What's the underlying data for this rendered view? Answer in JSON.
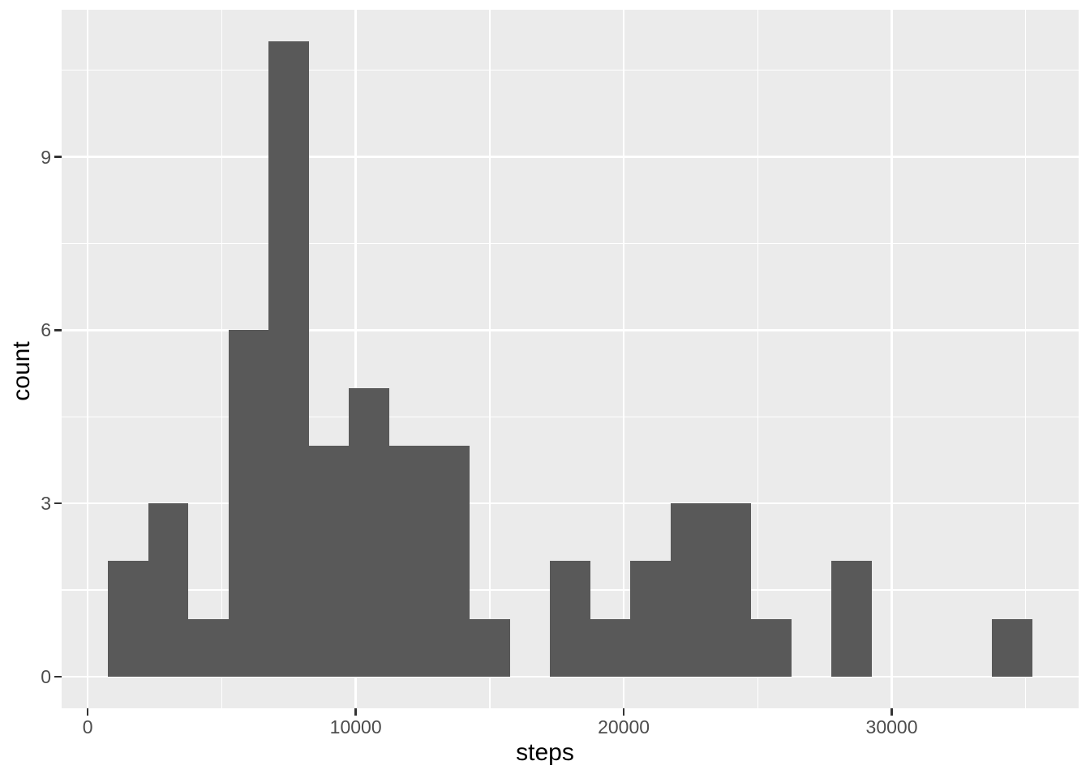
{
  "chart_data": {
    "type": "bar",
    "subtype": "histogram",
    "title": "",
    "xlabel": "steps",
    "ylabel": "count",
    "binwidth": 1500,
    "bins": {
      "centers": [
        1500,
        3000,
        4500,
        6000,
        7500,
        9000,
        10500,
        12000,
        13500,
        15000,
        16500,
        18000,
        19500,
        21000,
        22500,
        24000,
        25500,
        27000,
        28500,
        30000,
        31500,
        33000,
        34500
      ],
      "counts": [
        2,
        3,
        1,
        6,
        11,
        4,
        5,
        4,
        4,
        1,
        0,
        2,
        1,
        2,
        3,
        3,
        1,
        0,
        2,
        0,
        0,
        0,
        1
      ]
    },
    "x_axis": {
      "ticks": [
        0,
        10000,
        20000,
        30000
      ],
      "tick_labels": [
        "0",
        "10000",
        "20000",
        "30000"
      ],
      "minor_ticks": [
        5000,
        15000,
        25000,
        35000
      ],
      "range": [
        -975,
        36975
      ]
    },
    "y_axis": {
      "ticks": [
        0,
        3,
        6,
        9
      ],
      "tick_labels": [
        "0",
        "3",
        "6",
        "9"
      ],
      "minor_ticks": [
        1.5,
        4.5,
        7.5,
        10.5
      ],
      "range": [
        -0.55,
        11.55
      ]
    },
    "grid": "major-and-minor",
    "legend": "none",
    "style": {
      "bar_fill": "#595959",
      "panel_bg": "#EBEBEB",
      "grid_color": "#FFFFFF",
      "tick_label_color": "#4D4D4D",
      "axis_title_color": "#000000",
      "tick_mark_color": "#333333",
      "figure_bg": "#FFFFFF"
    }
  }
}
